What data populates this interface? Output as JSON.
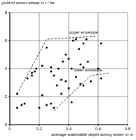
{
  "chart_data": {
    "type": "scatter",
    "x_label": "average watertable depth during winter in m",
    "y_label": "yield of winter wheat in t / ha",
    "xlim": [
      0,
      0.8
    ],
    "xticks": [
      0,
      0.2,
      0.4,
      0.6,
      0.8
    ],
    "ylim": [
      0,
      8
    ],
    "yticks": [
      0,
      2,
      4,
      6,
      8
    ],
    "grid": true,
    "color": "#000000",
    "marker": "circle",
    "x": [
      0.05,
      0.05,
      0.08,
      0.1,
      0.12,
      0.15,
      0.15,
      0.17,
      0.18,
      0.2,
      0.22,
      0.22,
      0.25,
      0.25,
      0.28,
      0.28,
      0.28,
      0.3,
      0.3,
      0.32,
      0.33,
      0.35,
      0.35,
      0.36,
      0.38,
      0.38,
      0.4,
      0.4,
      0.42,
      0.42,
      0.43,
      0.45,
      0.45,
      0.47,
      0.48,
      0.48,
      0.5,
      0.5,
      0.5,
      0.52,
      0.53,
      0.55,
      0.6,
      0.62,
      0.62
    ],
    "values": [
      2.2,
      1.2,
      1.4,
      1.5,
      3.3,
      3.7,
      3.5,
      3.8,
      4.0,
      1.2,
      4.2,
      2.1,
      1.4,
      5.5,
      4.1,
      3.8,
      1.5,
      3.5,
      1.2,
      2.8,
      4.0,
      2.2,
      3.2,
      4.5,
      5.0,
      3.1,
      4.7,
      2.6,
      4.0,
      1.6,
      6.0,
      6.1,
      3.4,
      5.4,
      4.3,
      2.9,
      5.8,
      4.1,
      2.8,
      6.1,
      4.5,
      3.1,
      4.0,
      5.8,
      3.3
    ],
    "lines": [
      {
        "label": "upper envelope",
        "line_style": "dashed",
        "color": "#000000",
        "x": [
          0.05,
          0.25,
          0.58
        ],
        "values": [
          2.2,
          6.1,
          6.3
        ],
        "label_x": 0.5,
        "label_y": 6.6
      },
      {
        "label": "lower envelope",
        "line_style": "dashed",
        "color": "#000000",
        "x": [
          0.3,
          0.55,
          0.68
        ],
        "values": [
          1.0,
          3.5,
          3.7
        ],
        "label_x": 0.53,
        "label_y": 3.9
      }
    ]
  }
}
